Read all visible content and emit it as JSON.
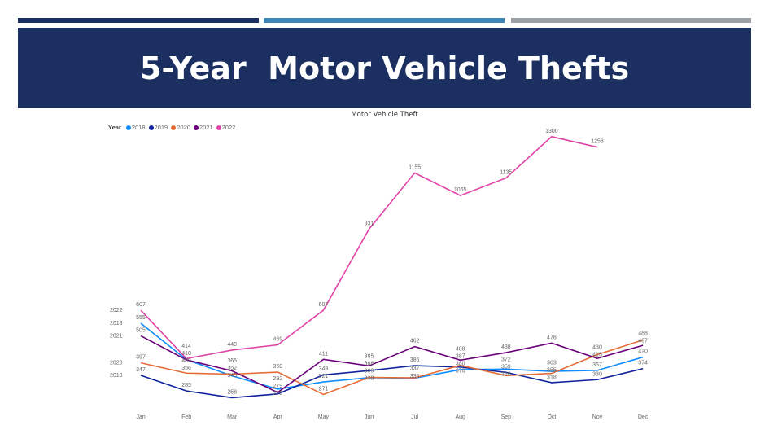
{
  "header": {
    "title": "5-Year  Motor Vehicle Thefts"
  },
  "colors": {
    "bar1": "#1b3060",
    "bar2": "#3f86b4",
    "bar3": "#9aa0a6",
    "header_bg": "#1b3060"
  },
  "chart_data": {
    "type": "line",
    "title": "Motor Vehicle Theft",
    "legend_title": "Year",
    "legend_position": "top-left",
    "categories": [
      "Jan",
      "Feb",
      "Mar",
      "Apr",
      "May",
      "Jun",
      "Jul",
      "Aug",
      "Sep",
      "Oct",
      "Nov",
      "Dec"
    ],
    "series": [
      {
        "name": "2018",
        "color": "#118dff",
        "values": [
          555,
          410,
          345,
          292,
          321,
          338,
          336,
          370,
          372,
          363,
          367,
          420
        ]
      },
      {
        "name": "2019",
        "color": "#12239e",
        "values": [
          347,
          285,
          258,
          273,
          349,
          366,
          386,
          380,
          359,
          318,
          330,
          374
        ]
      },
      {
        "name": "2020",
        "color": "#e66c37",
        "values": [
          397,
          356,
          352,
          360,
          271,
          339,
          337,
          387,
          346,
          355,
          430,
          488
        ]
      },
      {
        "name": "2021",
        "color": "#6b007b",
        "values": [
          505,
          409,
          365,
          279,
          411,
          385,
          462,
          408,
          438,
          476,
          415,
          467
        ]
      },
      {
        "name": "2022",
        "color": "#e044a7",
        "values": [
          607,
          414,
          448,
          469,
          607,
          931,
          1155,
          1065,
          1135,
          1300,
          1258,
          null
        ]
      }
    ],
    "ylim": [
      0,
      1400
    ],
    "grid": false
  }
}
